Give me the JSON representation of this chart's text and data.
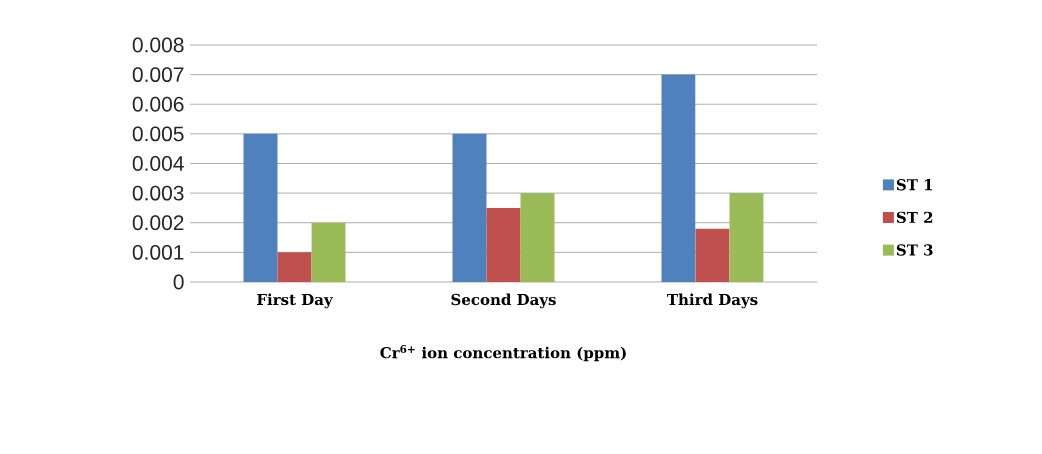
{
  "chart_data": {
    "type": "bar",
    "xlabel": "Cr$^{6+}$ ion concentration (ppm)",
    "categories": [
      "First Day",
      "Second Days",
      "Third Days"
    ],
    "series": [
      {
        "name": "ST 1",
        "color": "#4f81bd",
        "values": [
          0.005,
          0.005,
          0.007
        ]
      },
      {
        "name": "ST 2",
        "color": "#c0504d",
        "values": [
          0.001,
          0.0025,
          0.0018
        ]
      },
      {
        "name": "ST 3",
        "color": "#9bbb59",
        "values": [
          0.002,
          0.003,
          0.003
        ]
      }
    ],
    "ylim": [
      0,
      0.008
    ],
    "yticks": [
      0,
      0.001,
      0.002,
      0.003,
      0.004,
      0.005,
      0.006,
      0.007,
      0.008
    ],
    "grid": "y",
    "legend": "right"
  }
}
